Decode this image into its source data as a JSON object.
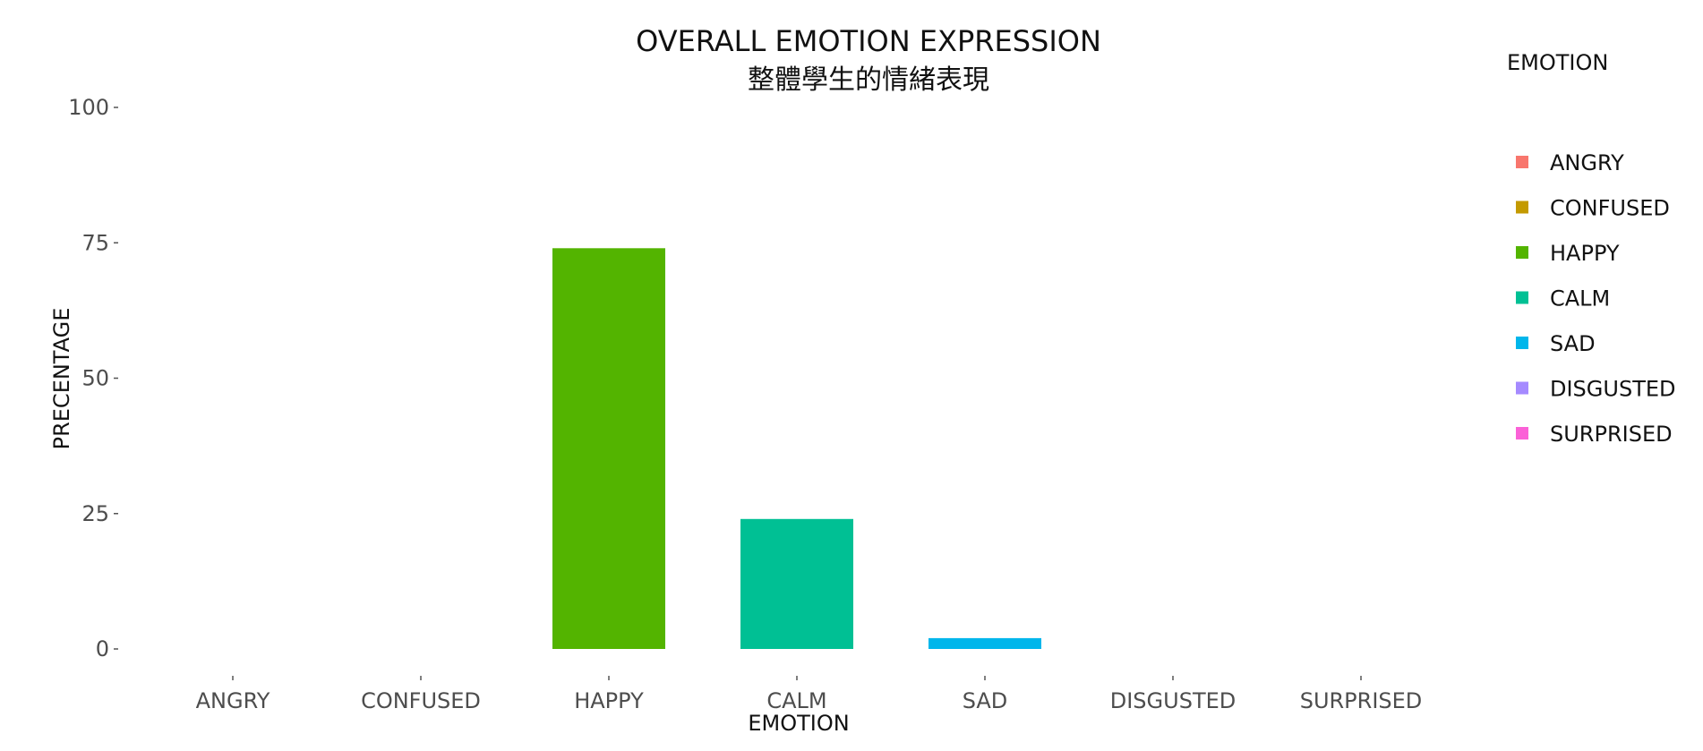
{
  "chart_data": {
    "type": "bar",
    "title": "OVERALL EMOTION EXPRESSION",
    "subtitle": "整體學生的情緒表現",
    "xlabel": "EMOTION",
    "ylabel": "PRECENTAGE",
    "ylim": [
      0,
      100
    ],
    "yticks": [
      0,
      25,
      50,
      75,
      100
    ],
    "grid": false,
    "legend_title": "EMOTION",
    "legend_placement": "right",
    "categories": [
      "ANGRY",
      "CONFUSED",
      "HAPPY",
      "CALM",
      "SAD",
      "DISGUSTED",
      "SURPRISED"
    ],
    "values": [
      0,
      0,
      74,
      24,
      2,
      0,
      0
    ],
    "colors": [
      "#F8766D",
      "#C49A00",
      "#53B400",
      "#00C094",
      "#00B6EB",
      "#A58AFF",
      "#FB61D7"
    ]
  }
}
